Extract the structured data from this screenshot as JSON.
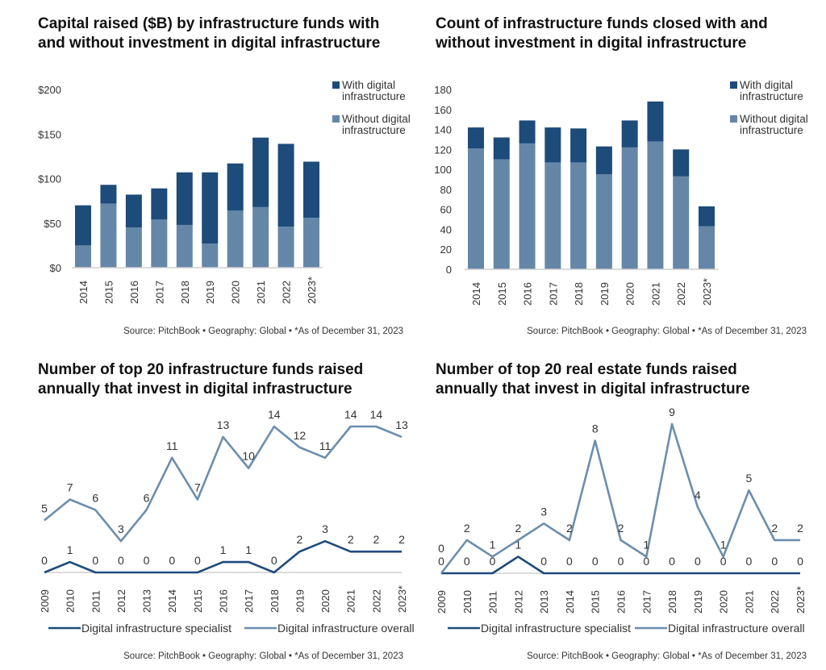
{
  "colors": {
    "dark": "#1d4b7a",
    "light": "#6487a8",
    "axis": "#cfcfcf"
  },
  "chart_data": [
    {
      "type": "bar",
      "stacked": true,
      "title_lines": [
        "Capital raised ($B) by infrastructure funds with",
        "and without investment in digital infrastructure"
      ],
      "categories": [
        "2014",
        "2015",
        "2016",
        "2017",
        "2018",
        "2019",
        "2020",
        "2021",
        "2022",
        "2023*"
      ],
      "series": [
        {
          "name": "Without digital infrastructure",
          "color": "#6487a8",
          "values": [
            25,
            72,
            45,
            54,
            48,
            27,
            64,
            68,
            46,
            56
          ]
        },
        {
          "name": "With digital infrastructure",
          "color": "#1d4b7a",
          "values": [
            45,
            21,
            37,
            35,
            59,
            80,
            53,
            78,
            93,
            63
          ]
        }
      ],
      "legend_lines": [
        [
          "With digital",
          "infrastructure"
        ],
        [
          "Without digital",
          "infrastructure"
        ]
      ],
      "ylim": [
        0,
        200
      ],
      "yticks": [
        "$0",
        "$50",
        "$100",
        "$150",
        "$200"
      ],
      "ytick_values": [
        0,
        50,
        100,
        150,
        200
      ],
      "legend": "right",
      "source": "Source: PitchBook  •  Geography: Global  •  *As of December 31, 2023"
    },
    {
      "type": "bar",
      "stacked": true,
      "title_lines": [
        "Count of infrastructure funds closed with and",
        "without investment in digital infrastructure"
      ],
      "categories": [
        "2014",
        "2015",
        "2016",
        "2017",
        "2018",
        "2019",
        "2020",
        "2021",
        "2022",
        "2023*"
      ],
      "series": [
        {
          "name": "Without digital infrastructure",
          "color": "#6487a8",
          "values": [
            121,
            110,
            126,
            107,
            107,
            95,
            122,
            128,
            93,
            43
          ]
        },
        {
          "name": "With digital infrastructure",
          "color": "#1d4b7a",
          "values": [
            21,
            22,
            23,
            35,
            34,
            28,
            27,
            40,
            27,
            20
          ]
        }
      ],
      "legend_lines": [
        [
          "With digital",
          "infrastructure"
        ],
        [
          "Without digital",
          "infrastructure"
        ]
      ],
      "ylim": [
        0,
        180
      ],
      "yticks": [
        "0",
        "20",
        "40",
        "60",
        "80",
        "100",
        "120",
        "140",
        "160",
        "180"
      ],
      "ytick_values": [
        0,
        20,
        40,
        60,
        80,
        100,
        120,
        140,
        160,
        180
      ],
      "legend": "right",
      "source": "Source: PitchBook  •  Geography: Global  •  *As of December 31, 2023"
    },
    {
      "type": "line",
      "title_lines": [
        "Number of top 20 infrastructure funds raised",
        "annually that invest in digital infrastructure"
      ],
      "categories": [
        "2009",
        "2010",
        "2011",
        "2012",
        "2013",
        "2014",
        "2015",
        "2016",
        "2017",
        "2018",
        "2019",
        "2020",
        "2021",
        "2022",
        "2023*"
      ],
      "series": [
        {
          "name": "Digital infrastructure specialist",
          "color": "#1d4b7a",
          "values": [
            0,
            1,
            0,
            0,
            0,
            0,
            0,
            1,
            1,
            0,
            2,
            3,
            2,
            2,
            2
          ]
        },
        {
          "name": "Digital infrastructure overall",
          "color": "#6b8eae",
          "values": [
            5,
            7,
            6,
            3,
            6,
            11,
            7,
            13,
            10,
            14,
            12,
            11,
            14,
            14,
            13
          ]
        }
      ],
      "ylim": [
        0,
        14
      ],
      "data_labels": true,
      "legend": "bottom",
      "source": "Source: PitchBook  •  Geography: Global  •  *As of December 31, 2023"
    },
    {
      "type": "line",
      "title_lines": [
        "Number of top 20 real estate funds raised",
        "annually that invest in digital infrastructure"
      ],
      "categories": [
        "2009",
        "2010",
        "2011",
        "2012",
        "2013",
        "2014",
        "2015",
        "2016",
        "2017",
        "2018",
        "2019",
        "2020",
        "2021",
        "2022",
        "2023*"
      ],
      "series": [
        {
          "name": "Digital infrastructure specialist",
          "color": "#1d4b7a",
          "values": [
            0,
            0,
            0,
            1,
            0,
            0,
            0,
            0,
            0,
            0,
            0,
            0,
            0,
            0,
            0
          ]
        },
        {
          "name": "Digital infrastructure overall",
          "color": "#6b8eae",
          "values": [
            0,
            2,
            1,
            2,
            3,
            2,
            8,
            2,
            1,
            9,
            4,
            1,
            5,
            2,
            2
          ]
        }
      ],
      "ylim": [
        0,
        9
      ],
      "data_labels": true,
      "legend": "bottom",
      "source": "Source: PitchBook  •  Geography: Global  •  *As of December 31, 2023"
    }
  ]
}
